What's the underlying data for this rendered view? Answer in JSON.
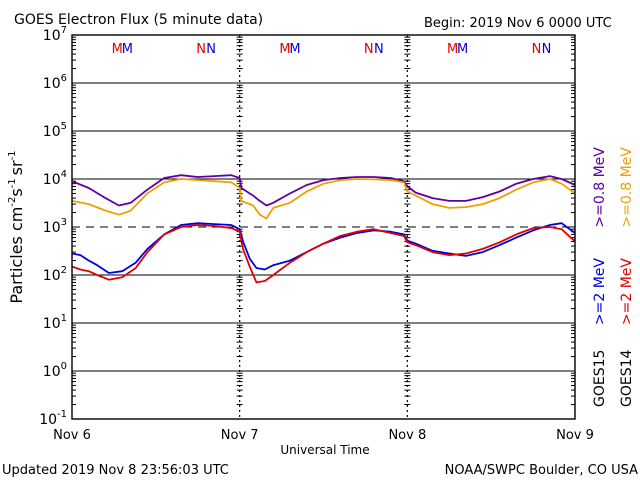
{
  "header": {
    "title": "GOES Electron Flux (5 minute data)",
    "begin": "Begin: 2019 Nov 6 0000 UTC"
  },
  "footer": {
    "updated": "Updated 2019 Nov  8 23:56:03 UTC",
    "credit": "NOAA/SWPC Boulder, CO USA"
  },
  "axes": {
    "xlabel": "Universal Time",
    "ylabel_parts": [
      "Particles cm",
      "-2",
      "s",
      "-1",
      "sr",
      "-1"
    ]
  },
  "y_ticks": [
    {
      "base": "10",
      "exp": "7"
    },
    {
      "base": "10",
      "exp": "6"
    },
    {
      "base": "10",
      "exp": "5"
    },
    {
      "base": "10",
      "exp": "4"
    },
    {
      "base": "10",
      "exp": "3"
    },
    {
      "base": "10",
      "exp": "2"
    },
    {
      "base": "10",
      "exp": "1"
    },
    {
      "base": "10",
      "exp": "0"
    },
    {
      "base": "10",
      "exp": "-1"
    }
  ],
  "x_ticks": [
    "Nov 6",
    "Nov 7",
    "Nov 8",
    "Nov 9"
  ],
  "markers": [
    {
      "text": "M",
      "color": "#e00000",
      "day": 0.27
    },
    {
      "text": "M",
      "color": "#0000e0",
      "day": 0.33
    },
    {
      "text": "N",
      "color": "#e00000",
      "day": 0.77
    },
    {
      "text": "N",
      "color": "#0000e0",
      "day": 0.83
    },
    {
      "text": "M",
      "color": "#e00000",
      "day": 1.27
    },
    {
      "text": "M",
      "color": "#0000e0",
      "day": 1.33
    },
    {
      "text": "N",
      "color": "#e00000",
      "day": 1.77
    },
    {
      "text": "N",
      "color": "#0000e0",
      "day": 1.83
    },
    {
      "text": "M",
      "color": "#e00000",
      "day": 2.27
    },
    {
      "text": "M",
      "color": "#0000e0",
      "day": 2.33
    },
    {
      "text": "N",
      "color": "#e00000",
      "day": 2.77
    },
    {
      "text": "N",
      "color": "#0000e0",
      "day": 2.83
    }
  ],
  "legend": {
    "goes15": {
      "label": "GOES15",
      "e08": ">=0.8 MeV",
      "e2": ">=2 MeV",
      "e08_color": "#6000a0",
      "e2_color": "#0000e0"
    },
    "goes14": {
      "label": "GOES14",
      "e08": ">=0.8 MeV",
      "e2": ">=2 MeV",
      "e08_color": "#f0a000",
      "e2_color": "#e00000"
    }
  },
  "colors": {
    "goes15_08": "#6000a0",
    "goes14_08": "#f0a000",
    "goes15_2": "#0000e0",
    "goes14_2": "#e00000",
    "threshold_line": "#000000"
  },
  "chart_data": {
    "type": "line",
    "title": "GOES Electron Flux (5 minute data)",
    "xlabel": "Universal Time",
    "ylabel": "Particles cm-2 s-1 sr-1",
    "x_unit": "days since 2019 Nov 6 0000 UTC",
    "xlim": [
      0,
      3
    ],
    "ylim": [
      0.1,
      10000000
    ],
    "y_scale": "log",
    "threshold": 1000,
    "grid": true,
    "series": [
      {
        "name": "GOES15 >=0.8 MeV",
        "color": "#6000a0",
        "x": [
          0,
          0.1,
          0.2,
          0.28,
          0.35,
          0.45,
          0.55,
          0.65,
          0.75,
          0.85,
          0.95,
          1.0,
          1.01,
          1.08,
          1.12,
          1.16,
          1.2,
          1.3,
          1.4,
          1.5,
          1.6,
          1.7,
          1.8,
          1.9,
          1.98,
          2.0,
          2.05,
          2.15,
          2.25,
          2.35,
          2.45,
          2.55,
          2.65,
          2.75,
          2.85,
          2.92,
          3.0
        ],
        "y": [
          9000,
          6500,
          4000,
          2800,
          3200,
          6000,
          10500,
          12000,
          11000,
          11500,
          12000,
          10500,
          6500,
          4500,
          3500,
          2800,
          3200,
          5000,
          7500,
          9500,
          10500,
          11000,
          11000,
          10500,
          9000,
          7000,
          5200,
          4000,
          3500,
          3500,
          4200,
          5500,
          8000,
          10000,
          11500,
          10000,
          7500
        ]
      },
      {
        "name": "GOES14 >=0.8 MeV",
        "color": "#f0a000",
        "x": [
          0,
          0.1,
          0.2,
          0.28,
          0.35,
          0.45,
          0.55,
          0.65,
          0.75,
          0.85,
          0.95,
          1.0,
          1.01,
          1.08,
          1.12,
          1.16,
          1.2,
          1.3,
          1.4,
          1.5,
          1.6,
          1.7,
          1.8,
          1.9,
          1.98,
          2.0,
          2.05,
          2.15,
          2.25,
          2.35,
          2.45,
          2.55,
          2.65,
          2.75,
          2.85,
          2.92,
          3.0
        ],
        "y": [
          3500,
          3000,
          2200,
          1800,
          2200,
          5000,
          8500,
          10000,
          9500,
          9000,
          8500,
          6500,
          3500,
          2800,
          1800,
          1500,
          2500,
          3200,
          5500,
          8000,
          9500,
          10000,
          9800,
          9500,
          8500,
          5500,
          4500,
          3000,
          2500,
          2600,
          3000,
          4000,
          6000,
          8500,
          10000,
          8000,
          5000
        ]
      },
      {
        "name": "GOES15 >=2 MeV",
        "color": "#0000e0",
        "x": [
          0,
          0.05,
          0.1,
          0.15,
          0.22,
          0.3,
          0.38,
          0.45,
          0.55,
          0.65,
          0.75,
          0.85,
          0.95,
          1.0,
          1.02,
          1.06,
          1.1,
          1.15,
          1.2,
          1.3,
          1.4,
          1.5,
          1.6,
          1.7,
          1.8,
          1.9,
          1.98,
          2.0,
          2.05,
          2.15,
          2.25,
          2.35,
          2.45,
          2.55,
          2.65,
          2.75,
          2.85,
          2.92,
          3.0
        ],
        "y": [
          280,
          260,
          200,
          160,
          110,
          120,
          180,
          350,
          700,
          1100,
          1200,
          1150,
          1100,
          900,
          500,
          220,
          140,
          130,
          160,
          200,
          300,
          450,
          600,
          750,
          850,
          800,
          700,
          520,
          450,
          320,
          280,
          250,
          300,
          420,
          600,
          850,
          1100,
          1200,
          750
        ]
      },
      {
        "name": "GOES14 >=2 MeV",
        "color": "#e00000",
        "x": [
          0,
          0.05,
          0.1,
          0.15,
          0.22,
          0.3,
          0.38,
          0.45,
          0.55,
          0.65,
          0.75,
          0.85,
          0.95,
          1.0,
          1.02,
          1.06,
          1.1,
          1.15,
          1.2,
          1.3,
          1.4,
          1.5,
          1.6,
          1.7,
          1.8,
          1.9,
          1.98,
          2.0,
          2.05,
          2.15,
          2.25,
          2.35,
          2.45,
          2.55,
          2.65,
          2.75,
          2.85,
          2.92,
          3.0
        ],
        "y": [
          150,
          130,
          120,
          100,
          80,
          90,
          140,
          300,
          700,
          1000,
          1100,
          1050,
          950,
          800,
          350,
          150,
          70,
          75,
          100,
          180,
          300,
          450,
          650,
          800,
          900,
          750,
          650,
          480,
          420,
          300,
          260,
          280,
          350,
          480,
          700,
          950,
          1000,
          900,
          500
        ]
      }
    ]
  }
}
